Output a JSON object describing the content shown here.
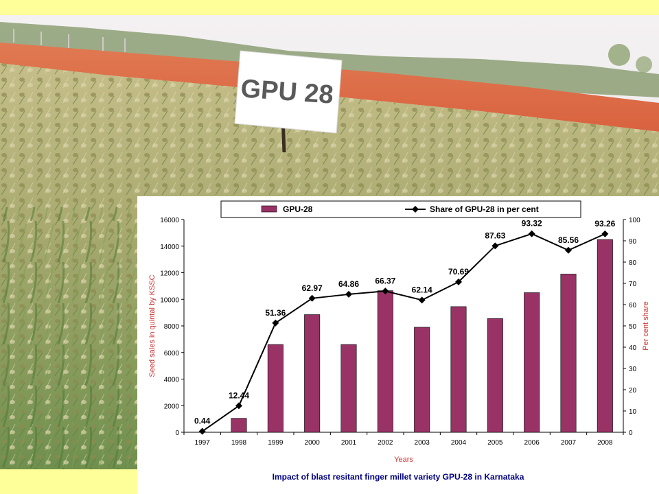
{
  "photo": {
    "sign_text": "GPU 28"
  },
  "chart_data": {
    "type": "bar+line",
    "categories": [
      "1997",
      "1998",
      "1999",
      "2000",
      "2001",
      "2002",
      "2003",
      "2004",
      "2005",
      "2006",
      "2007",
      "2008"
    ],
    "series": [
      {
        "name": "GPU-28",
        "type": "bar",
        "axis": "left",
        "color": "#993366",
        "values": [
          0,
          1050,
          6600,
          8850,
          6600,
          10650,
          7900,
          9450,
          8550,
          10500,
          11900,
          14500
        ]
      },
      {
        "name": "Share of GPU-28 in per cent",
        "type": "line",
        "axis": "right",
        "color": "#000000",
        "marker": "diamond",
        "values": [
          0.44,
          12.44,
          51.36,
          62.97,
          64.86,
          66.37,
          62.14,
          70.69,
          87.63,
          93.32,
          85.56,
          93.26
        ],
        "labels": [
          "0.44",
          "12.44",
          "51.36",
          "62.97",
          "64.86",
          "66.37",
          "62.14",
          "70.69",
          "87.63",
          "93.32",
          "85.56",
          "93.26"
        ]
      }
    ],
    "xlabel": "Years",
    "ylabel_left": "Seed sales in quintal by KSSC",
    "ylabel_right": "Per cent share",
    "ylim_left": [
      0,
      16000
    ],
    "yticks_left": [
      "0",
      "2000",
      "4000",
      "6000",
      "8000",
      "10000",
      "12000",
      "14000",
      "16000"
    ],
    "ylim_right": [
      0,
      100
    ],
    "yticks_right": [
      "0",
      "10",
      "20",
      "30",
      "40",
      "50",
      "60",
      "70",
      "80",
      "90",
      "100"
    ],
    "legend_position": "top",
    "grid": false,
    "caption": "Impact of blast resitant finger millet variety GPU-28 in Karnataka",
    "axis_label_color": "#cc3333"
  }
}
